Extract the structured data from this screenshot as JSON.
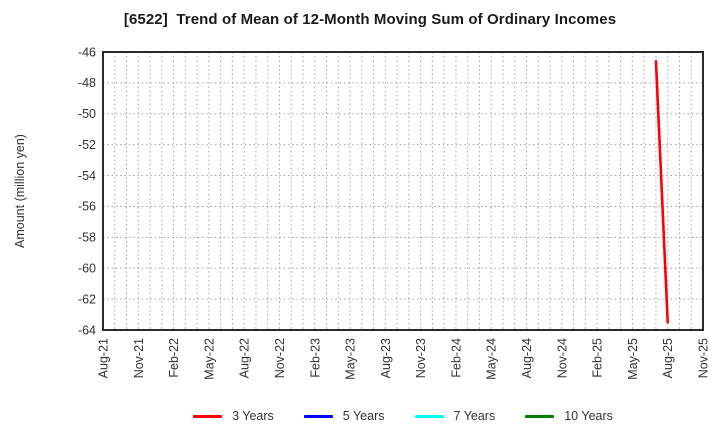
{
  "title": "[6522]  Trend of Mean of 12-Month Moving Sum of Ordinary Incomes",
  "colors": {
    "axis_border": "#2a2a2a",
    "grid": "#a3a3a3",
    "tick_text": "#333333",
    "title_text": "#1a1a1a",
    "series_red": "#ff0000",
    "series_blue": "#0000ff",
    "series_cyan": "#00ffff",
    "series_green": "#008000"
  },
  "chart_data": {
    "type": "line",
    "title": "[6522]  Trend of Mean of 12-Month Moving Sum of Ordinary Incomes",
    "xlabel": "",
    "ylabel": "Amount (million yen)",
    "ylim": [
      -64,
      -46
    ],
    "y_ticks": [
      -46,
      -48,
      -50,
      -52,
      -54,
      -56,
      -58,
      -60,
      -62,
      -64
    ],
    "x_tick_labels": [
      "Aug-21",
      "Nov-21",
      "Feb-22",
      "May-22",
      "Aug-22",
      "Nov-22",
      "Feb-23",
      "May-23",
      "Aug-23",
      "Nov-23",
      "Feb-24",
      "May-24",
      "Aug-24",
      "Nov-24",
      "Feb-25",
      "May-25",
      "Aug-25",
      "Nov-25"
    ],
    "x_range": [
      "Aug-21",
      "Nov-25"
    ],
    "months_per_labeled_tick": 3,
    "total_month_slots": 51,
    "minor_grid_interval_months": 1,
    "grid": true,
    "legend_position": "bottom",
    "series": [
      {
        "name": "3 Years",
        "color": "#ff0000",
        "points": [
          {
            "x": "Jul-25",
            "month_index": 47,
            "y": -46.6
          },
          {
            "x": "Aug-25",
            "month_index": 48,
            "y": -63.5
          }
        ]
      },
      {
        "name": "5 Years",
        "color": "#0000ff",
        "points": []
      },
      {
        "name": "7 Years",
        "color": "#00ffff",
        "points": []
      },
      {
        "name": "10 Years",
        "color": "#008000",
        "points": []
      }
    ]
  }
}
